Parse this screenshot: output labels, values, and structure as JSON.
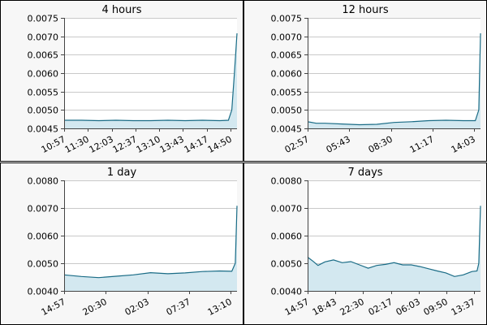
{
  "colors": {
    "line": "#1a6c86",
    "fill": "#d3e8f0",
    "panel_bg": "#f7f7f7",
    "grid": "#c9c9c9"
  },
  "chart_data": [
    {
      "type": "area",
      "title": "4 hours",
      "ylim": [
        0.0045,
        0.0075
      ],
      "yticks": [
        "0.0075",
        "0.0070",
        "0.0065",
        "0.0060",
        "0.0055",
        "0.0050",
        "0.0045"
      ],
      "xticks": [
        "10:57",
        "11:30",
        "12:03",
        "12:37",
        "13:10",
        "13:43",
        "14:17",
        "14:50"
      ],
      "x": [
        0,
        0.1,
        0.2,
        0.3,
        0.4,
        0.5,
        0.6,
        0.7,
        0.8,
        0.9,
        0.95,
        0.97,
        0.985,
        1.0
      ],
      "values": [
        0.00472,
        0.00472,
        0.00471,
        0.00472,
        0.00471,
        0.00471,
        0.00472,
        0.00471,
        0.00472,
        0.00471,
        0.00472,
        0.005,
        0.006,
        0.00708
      ]
    },
    {
      "type": "area",
      "title": "12 hours",
      "ylim": [
        0.0045,
        0.0075
      ],
      "yticks": [
        "0.0075",
        "0.0070",
        "0.0065",
        "0.0060",
        "0.0055",
        "0.0050",
        "0.0045"
      ],
      "xticks": [
        "02:57",
        "05:43",
        "08:30",
        "11:17",
        "14:03"
      ],
      "x": [
        0,
        0.05,
        0.1,
        0.2,
        0.3,
        0.4,
        0.5,
        0.6,
        0.7,
        0.8,
        0.9,
        0.97,
        0.99,
        1.0
      ],
      "values": [
        0.00468,
        0.00464,
        0.00464,
        0.00462,
        0.0046,
        0.00461,
        0.00466,
        0.00468,
        0.00471,
        0.00472,
        0.00471,
        0.00471,
        0.005,
        0.00708
      ]
    },
    {
      "type": "area",
      "title": "1 day",
      "ylim": [
        0.004,
        0.008
      ],
      "yticks": [
        "0.0080",
        "0.0070",
        "0.0060",
        "0.0050",
        "0.0040"
      ],
      "xticks": [
        "14:57",
        "20:30",
        "02:03",
        "07:37",
        "13:10"
      ],
      "x": [
        0,
        0.1,
        0.2,
        0.3,
        0.4,
        0.5,
        0.6,
        0.7,
        0.8,
        0.9,
        0.97,
        0.99,
        1.0
      ],
      "values": [
        0.00458,
        0.00452,
        0.00448,
        0.00453,
        0.00458,
        0.00466,
        0.00462,
        0.00465,
        0.0047,
        0.00472,
        0.00471,
        0.005,
        0.00708
      ]
    },
    {
      "type": "area",
      "title": "7 days",
      "ylim": [
        0.004,
        0.008
      ],
      "yticks": [
        "0.0080",
        "0.0070",
        "0.0060",
        "0.0050",
        "0.0040"
      ],
      "xticks": [
        "14:57",
        "18:43",
        "22:30",
        "02:17",
        "06:03",
        "09:50",
        "13:37"
      ],
      "x": [
        0,
        0.03,
        0.06,
        0.1,
        0.15,
        0.2,
        0.25,
        0.3,
        0.35,
        0.4,
        0.45,
        0.5,
        0.55,
        0.6,
        0.65,
        0.7,
        0.75,
        0.8,
        0.85,
        0.9,
        0.95,
        0.98,
        0.99,
        1.0
      ],
      "values": [
        0.00522,
        0.00508,
        0.00492,
        0.00505,
        0.00512,
        0.00502,
        0.00506,
        0.00494,
        0.00482,
        0.00492,
        0.00496,
        0.00502,
        0.00494,
        0.00494,
        0.00488,
        0.0048,
        0.00472,
        0.00465,
        0.00452,
        0.00458,
        0.0047,
        0.00472,
        0.005,
        0.00708
      ]
    }
  ]
}
